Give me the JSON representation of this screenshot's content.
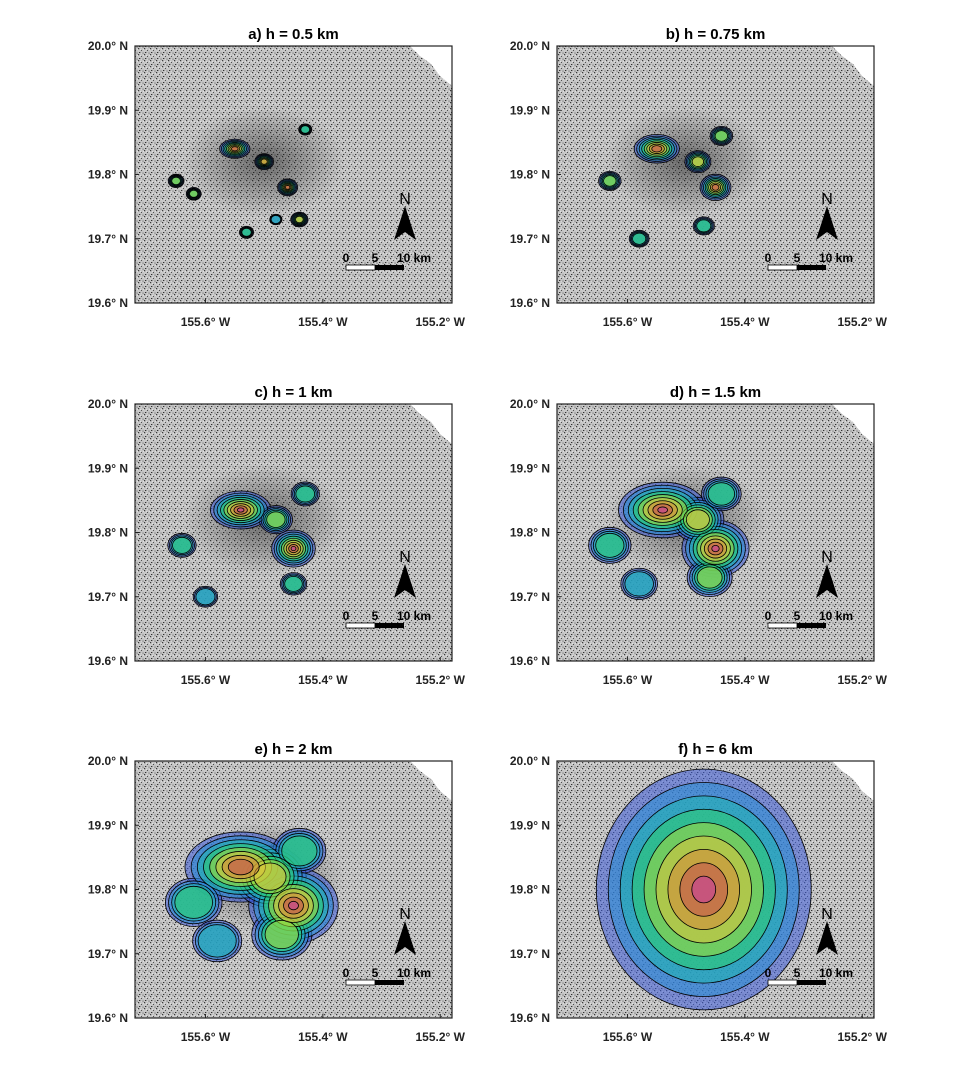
{
  "figure": {
    "colors": {
      "background_map": "#b9b9b9",
      "ocean": "#ffffff",
      "axis": "#222222",
      "contour_line": "#000000"
    }
  },
  "chart_data": [
    {
      "type": "heatmap",
      "title": "a) h = 0.5 km",
      "xlim": [
        -155.72,
        -155.18
      ],
      "ylim": [
        19.6,
        20.0
      ],
      "xticks": [
        -155.6,
        -155.4,
        -155.2
      ],
      "yticks": [
        19.6,
        19.7,
        19.8,
        19.9,
        20.0
      ],
      "xtick_labels": [
        "155.6° W",
        "155.4° W",
        "155.2° W"
      ],
      "ytick_labels": [
        "19.6° N",
        "19.7° N",
        "19.8° N",
        "19.9° N",
        "20.0° N"
      ],
      "bandwidth_km": 0.5,
      "peaks": [
        {
          "lon": -155.55,
          "lat": 19.84,
          "value": 1.0
        },
        {
          "lon": -155.46,
          "lat": 19.78,
          "value": 0.8
        },
        {
          "lon": -155.5,
          "lat": 19.82,
          "value": 0.7
        },
        {
          "lon": -155.44,
          "lat": 19.73,
          "value": 0.6
        },
        {
          "lon": -155.65,
          "lat": 19.79,
          "value": 0.5
        },
        {
          "lon": -155.62,
          "lat": 19.77,
          "value": 0.45
        },
        {
          "lon": -155.53,
          "lat": 19.71,
          "value": 0.4
        },
        {
          "lon": -155.43,
          "lat": 19.87,
          "value": 0.35
        },
        {
          "lon": -155.48,
          "lat": 19.73,
          "value": 0.3
        }
      ],
      "scale_bar": {
        "labels": [
          "0",
          "5",
          "10 km"
        ]
      },
      "north_arrow": "N"
    },
    {
      "type": "heatmap",
      "title": "b) h = 0.75 km",
      "xlim": [
        -155.72,
        -155.18
      ],
      "ylim": [
        19.6,
        20.0
      ],
      "xticks": [
        -155.6,
        -155.4,
        -155.2
      ],
      "yticks": [
        19.6,
        19.7,
        19.8,
        19.9,
        20.0
      ],
      "xtick_labels": [
        "155.6° W",
        "155.4° W",
        "155.2° W"
      ],
      "ytick_labels": [
        "19.6° N",
        "19.7° N",
        "19.8° N",
        "19.9° N",
        "20.0° N"
      ],
      "bandwidth_km": 0.75,
      "peaks": [
        {
          "lon": -155.55,
          "lat": 19.84,
          "value": 1.0
        },
        {
          "lon": -155.45,
          "lat": 19.78,
          "value": 0.85
        },
        {
          "lon": -155.48,
          "lat": 19.82,
          "value": 0.6
        },
        {
          "lon": -155.44,
          "lat": 19.86,
          "value": 0.45
        },
        {
          "lon": -155.63,
          "lat": 19.79,
          "value": 0.45
        },
        {
          "lon": -155.47,
          "lat": 19.72,
          "value": 0.4
        },
        {
          "lon": -155.58,
          "lat": 19.7,
          "value": 0.35
        }
      ],
      "scale_bar": {
        "labels": [
          "0",
          "5",
          "10 km"
        ]
      },
      "north_arrow": "N"
    },
    {
      "type": "heatmap",
      "title": "c) h = 1 km",
      "xlim": [
        -155.72,
        -155.18
      ],
      "ylim": [
        19.6,
        20.0
      ],
      "xticks": [
        -155.6,
        -155.4,
        -155.2
      ],
      "yticks": [
        19.6,
        19.7,
        19.8,
        19.9,
        20.0
      ],
      "xtick_labels": [
        "155.6° W",
        "155.4° W",
        "155.2° W"
      ],
      "ytick_labels": [
        "19.6° N",
        "19.7° N",
        "19.8° N",
        "19.9° N",
        "20.0° N"
      ],
      "bandwidth_km": 1,
      "peaks": [
        {
          "lon": -155.54,
          "lat": 19.835,
          "value": 1.0
        },
        {
          "lon": -155.45,
          "lat": 19.775,
          "value": 0.95
        },
        {
          "lon": -155.48,
          "lat": 19.82,
          "value": 0.55
        },
        {
          "lon": -155.43,
          "lat": 19.86,
          "value": 0.4
        },
        {
          "lon": -155.64,
          "lat": 19.78,
          "value": 0.4
        },
        {
          "lon": -155.45,
          "lat": 19.72,
          "value": 0.35
        },
        {
          "lon": -155.6,
          "lat": 19.7,
          "value": 0.3
        }
      ],
      "scale_bar": {
        "labels": [
          "0",
          "5",
          "10 km"
        ]
      },
      "north_arrow": "N"
    },
    {
      "type": "heatmap",
      "title": "d) h = 1.5 km",
      "xlim": [
        -155.72,
        -155.18
      ],
      "ylim": [
        19.6,
        20.0
      ],
      "xticks": [
        -155.6,
        -155.4,
        -155.2
      ],
      "yticks": [
        19.6,
        19.7,
        19.8,
        19.9,
        20.0
      ],
      "xtick_labels": [
        "155.6° W",
        "155.4° W",
        "155.2° W"
      ],
      "ytick_labels": [
        "19.6° N",
        "19.7° N",
        "19.8° N",
        "19.9° N",
        "20.0° N"
      ],
      "bandwidth_km": 1.5,
      "peaks": [
        {
          "lon": -155.54,
          "lat": 19.835,
          "value": 0.95
        },
        {
          "lon": -155.45,
          "lat": 19.775,
          "value": 1.0
        },
        {
          "lon": -155.48,
          "lat": 19.82,
          "value": 0.6
        },
        {
          "lon": -155.63,
          "lat": 19.78,
          "value": 0.4
        },
        {
          "lon": -155.46,
          "lat": 19.73,
          "value": 0.45
        },
        {
          "lon": -155.44,
          "lat": 19.86,
          "value": 0.35
        },
        {
          "lon": -155.58,
          "lat": 19.72,
          "value": 0.3
        }
      ],
      "scale_bar": {
        "labels": [
          "0",
          "5",
          "10 km"
        ]
      },
      "north_arrow": "N"
    },
    {
      "type": "heatmap",
      "title": "e) h = 2 km",
      "xlim": [
        -155.72,
        -155.18
      ],
      "ylim": [
        19.6,
        20.0
      ],
      "xticks": [
        -155.6,
        -155.4,
        -155.2
      ],
      "yticks": [
        19.6,
        19.7,
        19.8,
        19.9,
        20.0
      ],
      "xtick_labels": [
        "155.6° W",
        "155.4° W",
        "155.2° W"
      ],
      "ytick_labels": [
        "19.6° N",
        "19.7° N",
        "19.8° N",
        "19.9° N",
        "20.0° N"
      ],
      "bandwidth_km": 2,
      "peaks": [
        {
          "lon": -155.54,
          "lat": 19.835,
          "value": 0.85
        },
        {
          "lon": -155.45,
          "lat": 19.775,
          "value": 1.0
        },
        {
          "lon": -155.49,
          "lat": 19.82,
          "value": 0.65
        },
        {
          "lon": -155.62,
          "lat": 19.78,
          "value": 0.4
        },
        {
          "lon": -155.47,
          "lat": 19.73,
          "value": 0.45
        },
        {
          "lon": -155.44,
          "lat": 19.86,
          "value": 0.35
        },
        {
          "lon": -155.58,
          "lat": 19.72,
          "value": 0.3
        }
      ],
      "scale_bar": {
        "labels": [
          "0",
          "5",
          "10 km"
        ]
      },
      "north_arrow": "N"
    },
    {
      "type": "heatmap",
      "title": "f) h = 6 km",
      "xlim": [
        -155.72,
        -155.18
      ],
      "ylim": [
        19.6,
        20.0
      ],
      "xticks": [
        -155.6,
        -155.4,
        -155.2
      ],
      "yticks": [
        19.6,
        19.7,
        19.8,
        19.9,
        20.0
      ],
      "xtick_labels": [
        "155.6° W",
        "155.4° W",
        "155.2° W"
      ],
      "ytick_labels": [
        "19.6° N",
        "19.7° N",
        "19.8° N",
        "19.9° N",
        "20.0° N"
      ],
      "bandwidth_km": 6,
      "peaks": [
        {
          "lon": -155.47,
          "lat": 19.8,
          "value": 1.0
        }
      ],
      "scale_bar": {
        "labels": [
          "0",
          "5",
          "10 km"
        ]
      },
      "north_arrow": "N"
    }
  ]
}
